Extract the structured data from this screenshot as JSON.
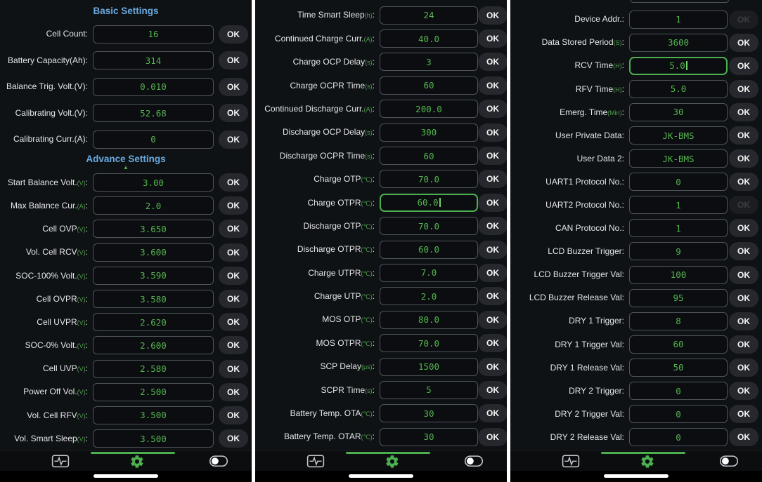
{
  "ok_label": "OK",
  "colors": {
    "background": "#0f1215",
    "header_blue": "#69a9e0",
    "value_green": "#54b54e",
    "unit_green": "#4da04a",
    "accent_green": "#4caf50",
    "label_text": "#e4e6e8",
    "box_border": "#4f545a",
    "ok_pill_bg": "#26282d",
    "separator": "#ffffff"
  },
  "nav": {
    "active_tab": "settings",
    "icons": [
      {
        "name": "monitor",
        "active": false
      },
      {
        "name": "settings",
        "active": true
      },
      {
        "name": "control-toggle",
        "active": false
      }
    ]
  },
  "columns": [
    {
      "id": "settings-screen-1",
      "sections": [
        {
          "title": "Basic Settings",
          "rows": [
            {
              "label": "Cell Count",
              "value": "16"
            },
            {
              "label": "Battery Capacity(Ah)",
              "value": "314"
            },
            {
              "label": "Balance Trig. Volt.(V)",
              "value": "0.010"
            },
            {
              "label": "Calibrating Volt.(V)",
              "value": "52.68"
            },
            {
              "label": "Calibrating Curr.(A)",
              "value": "0"
            }
          ]
        },
        {
          "title": "Advance Settings",
          "collapse_arrow": "▲",
          "rows": [
            {
              "label": "Start Balance Volt.",
              "unit": "(V)",
              "value": "3.00"
            },
            {
              "label": "Max Balance Cur.",
              "unit": "(A)",
              "value": "2.0"
            },
            {
              "label": "Cell OVP",
              "unit": "(V)",
              "value": "3.650"
            },
            {
              "label": "Vol. Cell RCV",
              "unit": "(V)",
              "value": "3.600"
            },
            {
              "label": "SOC-100% Volt.",
              "unit": "(V)",
              "value": "3.590"
            },
            {
              "label": "Cell OVPR",
              "unit": "(V)",
              "value": "3.580"
            },
            {
              "label": "Cell UVPR",
              "unit": "(V)",
              "value": "2.620"
            },
            {
              "label": "SOC-0% Volt.",
              "unit": "(V)",
              "value": "2.600"
            },
            {
              "label": "Cell UVP",
              "unit": "(V)",
              "value": "2.580"
            },
            {
              "label": "Power Off Vol.",
              "unit": "(V)",
              "value": "2.500"
            },
            {
              "label": "Vol. Cell RFV",
              "unit": "(V)",
              "value": "3.500"
            },
            {
              "label": "Vol. Smart Sleep",
              "unit": "(V)",
              "value": "3.500"
            }
          ]
        }
      ]
    },
    {
      "id": "settings-screen-2",
      "sections": [
        {
          "title": null,
          "rows": [
            {
              "label": "Time Smart Sleep",
              "unit": "(h)",
              "value": "24"
            },
            {
              "label": "Continued Charge Curr.",
              "unit": "(A)",
              "value": "40.0"
            },
            {
              "label": "Charge OCP Delay",
              "unit": "(s)",
              "value": "3"
            },
            {
              "label": "Charge OCPR Time",
              "unit": "(s)",
              "value": "60"
            },
            {
              "label": "Continued Discharge Curr.",
              "unit": "(A)",
              "value": "200.0"
            },
            {
              "label": "Discharge OCP Delay",
              "unit": "(s)",
              "value": "300"
            },
            {
              "label": "Discharge OCPR Time",
              "unit": "(s)",
              "value": "60"
            },
            {
              "label": "Charge OTP",
              "unit": "(℃)",
              "value": "70.0"
            },
            {
              "label": "Charge OTPR",
              "unit": "(℃)",
              "value": "60.0",
              "focused": true
            },
            {
              "label": "Discharge OTP",
              "unit": "(℃)",
              "value": "70.0"
            },
            {
              "label": "Discharge OTPR",
              "unit": "(℃)",
              "value": "60.0"
            },
            {
              "label": "Charge UTPR",
              "unit": "(℃)",
              "value": "7.0"
            },
            {
              "label": "Charge UTP",
              "unit": "(℃)",
              "value": "2.0"
            },
            {
              "label": "MOS OTP",
              "unit": "(℃)",
              "value": "80.0"
            },
            {
              "label": "MOS OTPR",
              "unit": "(℃)",
              "value": "70.0"
            },
            {
              "label": "SCP Delay",
              "unit": "(μs)",
              "value": "1500"
            },
            {
              "label": "SCPR Time",
              "unit": "(s)",
              "value": "5"
            },
            {
              "label": "Battery Temp. OTA",
              "unit": "(℃)",
              "value": "30"
            },
            {
              "label": "Battery Temp. OTAR",
              "unit": "(℃)",
              "value": "30"
            }
          ]
        }
      ]
    },
    {
      "id": "settings-screen-3",
      "partial_row_above": true,
      "sections": [
        {
          "title": null,
          "rows": [
            {
              "label": "Device Addr.",
              "value": "1",
              "ok_disabled": true
            },
            {
              "label": "Data Stored Period",
              "unit": "(S)",
              "value": "3600"
            },
            {
              "label": "RCV Time",
              "unit": "(H)",
              "value": "5.0",
              "focused": true
            },
            {
              "label": "RFV Time",
              "unit": "(H)",
              "value": "5.0"
            },
            {
              "label": "Emerg. Time",
              "unit": "(Min)",
              "value": "30"
            },
            {
              "label": "User Private Data",
              "value": "JK-BMS"
            },
            {
              "label": "User Data 2",
              "value": "JK-BMS"
            },
            {
              "label": "UART1 Protocol No.",
              "value": "0"
            },
            {
              "label": "UART2 Protocol No.",
              "value": "1",
              "ok_disabled": true
            },
            {
              "label": "CAN Protocol No.",
              "value": "1"
            },
            {
              "label": "LCD Buzzer Trigger",
              "value": "9"
            },
            {
              "label": "LCD Buzzer Trigger Val",
              "value": "100"
            },
            {
              "label": "LCD Buzzer Release Val",
              "value": "95"
            },
            {
              "label": "DRY 1 Trigger",
              "value": "8"
            },
            {
              "label": "DRY 1 Trigger Val",
              "value": "60"
            },
            {
              "label": "DRY 1 Release Val",
              "value": "50"
            },
            {
              "label": "DRY 2 Trigger",
              "value": "0"
            },
            {
              "label": "DRY 2 Trigger Val",
              "value": "0"
            },
            {
              "label": "DRY 2 Release Val",
              "value": "0"
            }
          ]
        }
      ]
    }
  ]
}
